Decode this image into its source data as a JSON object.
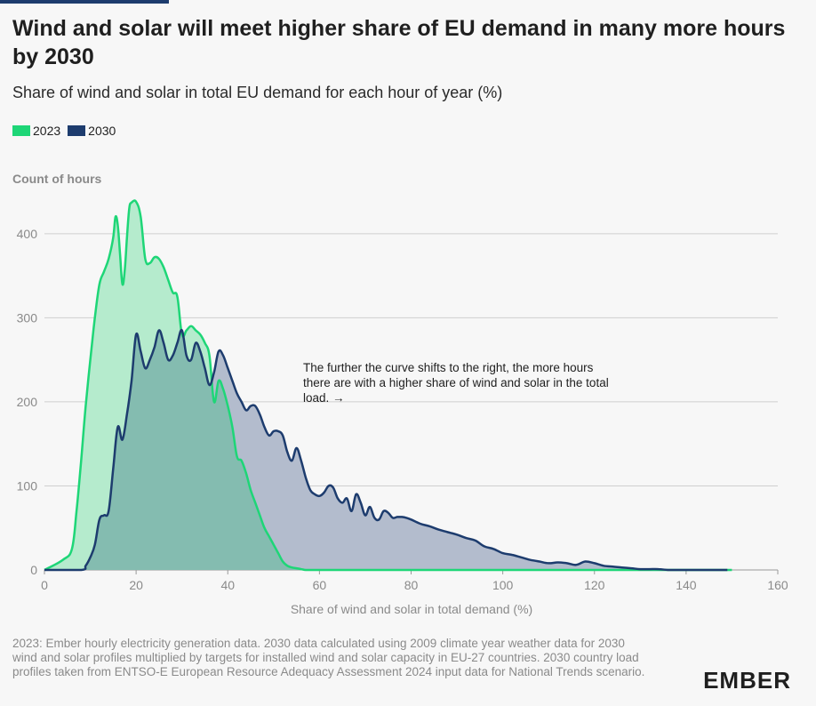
{
  "header": {
    "title": "Wind and solar will meet higher share of EU demand in many more hours by 2030",
    "subtitle": "Share of wind and solar in total EU demand for each hour of year (%)"
  },
  "legend": [
    {
      "label": "2023",
      "color": "#1ed677"
    },
    {
      "label": "2030",
      "color": "#1d3c6e"
    }
  ],
  "colors": {
    "series_2023_line": "#1ed677",
    "series_2023_fill": "#b5ebcd",
    "series_2030_line": "#1d3c6e",
    "series_2030_fill": "#b3bccd",
    "overlap_fill": "#84bcb0",
    "grid": "#cfcfcf",
    "background": "#f7f7f7"
  },
  "annotation": {
    "lines": [
      "The further the curve shifts to the right, the more hours",
      "there are with a higher share of wind and solar in the total",
      "load. →"
    ]
  },
  "footnote": "2023: Ember hourly electricity generation data. 2030 data calculated using 2009 climate year weather data for 2030 wind and solar profiles multiplied by targets for installed wind and solar capacity in EU-27 countries. 2030 country load profiles taken from ENTSO-E European Resource Adequacy Assessment 2024 input data for National Trends scenario.",
  "logo": "EMBER",
  "chart_data": {
    "type": "area",
    "ylabel": "Count of hours",
    "xlabel": "Share of wind and solar in total demand (%)",
    "xlim": [
      0,
      160
    ],
    "ylim": [
      0,
      440
    ],
    "xticks": [
      0,
      20,
      40,
      60,
      80,
      100,
      120,
      140,
      160
    ],
    "yticks": [
      0,
      100,
      200,
      300,
      400
    ],
    "grid": true,
    "legend_position": "top-left",
    "series": [
      {
        "name": "2023",
        "x": [
          0,
          4,
          6,
          7,
          8,
          9,
          10,
          11,
          12,
          13,
          14,
          15,
          15.5,
          16,
          16.5,
          17,
          17.5,
          18,
          18.5,
          19,
          20,
          21,
          22,
          23,
          24,
          25,
          26,
          27,
          28,
          29,
          30,
          31,
          32,
          33,
          34,
          35,
          36,
          37,
          38,
          39,
          40,
          41,
          42,
          43,
          44,
          45,
          46,
          47,
          48,
          49,
          50,
          51,
          52,
          53,
          54,
          55,
          56,
          57,
          58,
          59,
          60,
          65,
          70,
          80,
          100,
          120,
          150
        ],
        "values": [
          0,
          12,
          25,
          70,
          130,
          195,
          250,
          300,
          340,
          355,
          370,
          395,
          420,
          410,
          375,
          340,
          355,
          395,
          430,
          437,
          438,
          420,
          370,
          365,
          372,
          370,
          360,
          345,
          330,
          325,
          280,
          285,
          290,
          285,
          280,
          270,
          255,
          200,
          225,
          215,
          195,
          170,
          135,
          130,
          115,
          95,
          80,
          65,
          50,
          40,
          30,
          20,
          10,
          5,
          3,
          2,
          1,
          0,
          0,
          0,
          0,
          0,
          0,
          0,
          0,
          0,
          0
        ]
      },
      {
        "name": "2030",
        "x": [
          0,
          8,
          9,
          10,
          11,
          12,
          13,
          14,
          15,
          16,
          17,
          18,
          19,
          20,
          21,
          22,
          23,
          24,
          25,
          26,
          27,
          28,
          29,
          30,
          31,
          32,
          33,
          34,
          35,
          36,
          37,
          38,
          39,
          40,
          41,
          42,
          43,
          44,
          45,
          46,
          47,
          48,
          49,
          50,
          51,
          52,
          53,
          54,
          55,
          56,
          57,
          58,
          59,
          60,
          61,
          62,
          63,
          64,
          65,
          66,
          67,
          68,
          69,
          70,
          71,
          72,
          73,
          74,
          75,
          76,
          77,
          78,
          79,
          80,
          82,
          84,
          86,
          88,
          90,
          92,
          94,
          96,
          98,
          100,
          102,
          104,
          106,
          108,
          110,
          112,
          114,
          116,
          118,
          120,
          122,
          124,
          126,
          128,
          130,
          132,
          134,
          136,
          138,
          140,
          142,
          144,
          146,
          148,
          149
        ],
        "values": [
          0,
          0,
          5,
          15,
          30,
          60,
          65,
          70,
          120,
          170,
          155,
          185,
          225,
          280,
          260,
          240,
          250,
          265,
          285,
          270,
          250,
          255,
          270,
          285,
          255,
          250,
          270,
          260,
          240,
          220,
          235,
          260,
          255,
          240,
          225,
          210,
          200,
          190,
          195,
          195,
          185,
          170,
          160,
          165,
          165,
          160,
          140,
          130,
          145,
          130,
          110,
          95,
          90,
          88,
          92,
          100,
          98,
          85,
          80,
          85,
          70,
          90,
          80,
          65,
          75,
          62,
          60,
          70,
          68,
          62,
          63,
          63,
          62,
          60,
          55,
          52,
          48,
          45,
          42,
          38,
          35,
          28,
          25,
          20,
          18,
          15,
          12,
          10,
          8,
          9,
          8,
          6,
          10,
          8,
          5,
          4,
          3,
          2,
          1,
          1,
          1,
          0,
          0,
          0,
          0,
          0,
          0,
          0,
          0
        ]
      }
    ]
  }
}
